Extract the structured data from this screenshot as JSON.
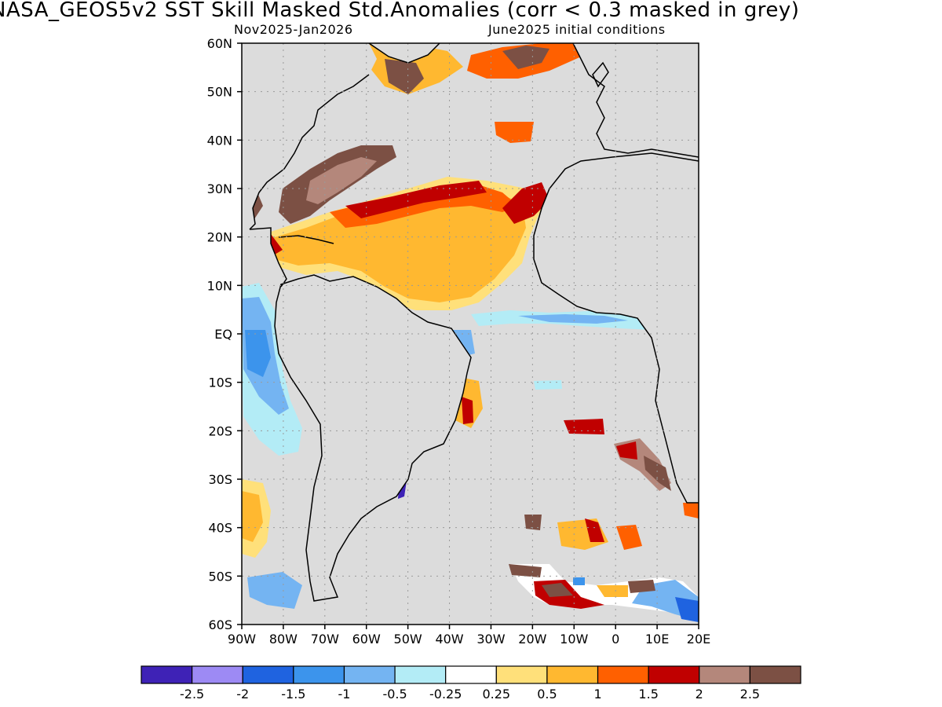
{
  "title": "NASA_GEOS5v2   SST Skill Masked Std.Anomalies (corr < 0.3 masked in grey)",
  "subtitle_left": "Nov2025-Jan2026",
  "subtitle_right": "June2025 initial conditions",
  "lat_labels": [
    "60N",
    "50N",
    "40N",
    "30N",
    "20N",
    "10N",
    "EQ",
    "10S",
    "20S",
    "30S",
    "40S",
    "50S",
    "60S"
  ],
  "lon_labels": [
    "90W",
    "80W",
    "70W",
    "60W",
    "50W",
    "40W",
    "30W",
    "20W",
    "10W",
    "0",
    "10E",
    "20E"
  ],
  "map": {
    "lon_range": [
      -90,
      20
    ],
    "lat_range": [
      -60,
      60
    ],
    "grid": true,
    "mask_color": "#dcdcdc"
  },
  "colorbar": {
    "colors": [
      "#3e22b6",
      "#9d8af4",
      "#1f63e0",
      "#3c94ec",
      "#74b4f2",
      "#b3ecf6",
      "#ffffff",
      "#ffe07a",
      "#ffb830",
      "#ff6000",
      "#c00000",
      "#b4877b",
      "#7c5044"
    ],
    "labels": [
      "-2.5",
      "-2",
      "-1.5",
      "-1",
      "-0.5",
      "-0.25",
      "0.25",
      "0.5",
      "1",
      "1.5",
      "2",
      "2.5"
    ]
  },
  "icons": [
    "continent-outline-icon"
  ]
}
